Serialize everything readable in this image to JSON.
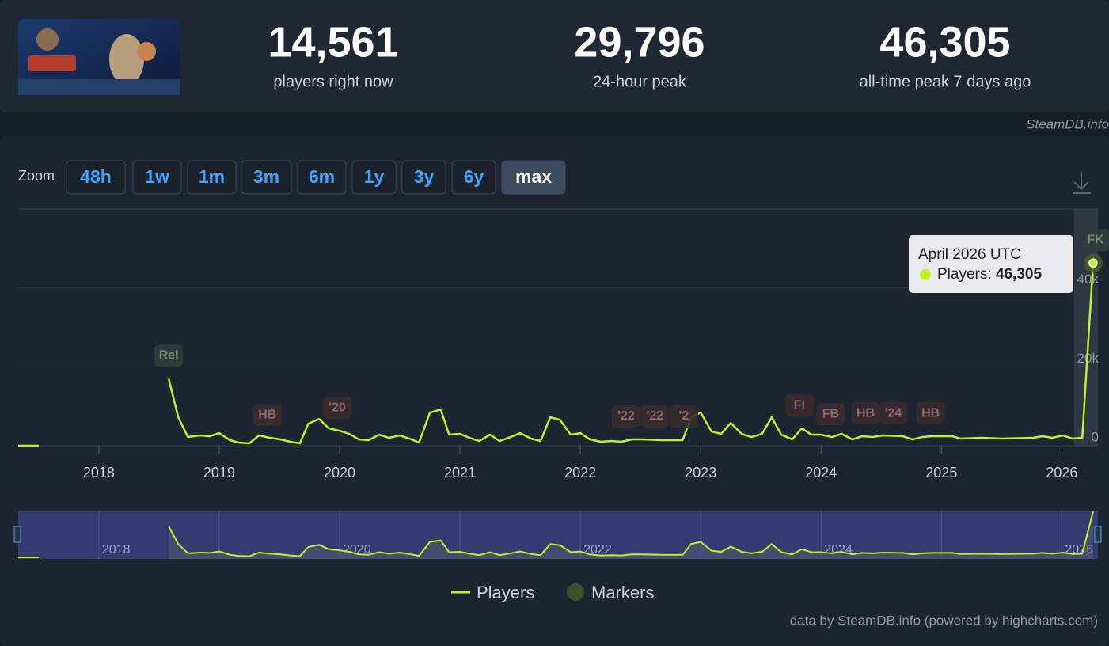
{
  "header": {
    "stats": [
      {
        "value": "14,561",
        "label": "players right now"
      },
      {
        "value": "29,796",
        "label": "24-hour peak"
      },
      {
        "value": "46,305",
        "label": "all-time peak 7 days ago"
      }
    ],
    "brand": "SteamDB.info"
  },
  "zoom": {
    "label": "Zoom",
    "buttons": [
      "48h",
      "1w",
      "1m",
      "3m",
      "6m",
      "1y",
      "3y",
      "6y",
      "max"
    ],
    "active": 8
  },
  "chart_data": {
    "type": "line",
    "x": [
      2017.33,
      2017.5,
      2018.0,
      2018.58,
      2018.66,
      2018.74,
      2018.84,
      2018.92,
      2019.0,
      2019.09,
      2019.16,
      2019.25,
      2019.33,
      2019.42,
      2019.51,
      2019.59,
      2019.67,
      2019.74,
      2019.83,
      2019.91,
      2020.0,
      2020.08,
      2020.16,
      2020.24,
      2020.33,
      2020.41,
      2020.5,
      2020.58,
      2020.66,
      2020.75,
      2020.84,
      2020.91,
      2021.0,
      2021.08,
      2021.16,
      2021.25,
      2021.33,
      2021.42,
      2021.5,
      2021.59,
      2021.67,
      2021.75,
      2021.83,
      2021.92,
      2022.0,
      2022.08,
      2022.17,
      2022.26,
      2022.34,
      2022.43,
      2022.51,
      2022.68,
      2022.85,
      2022.92,
      2023.0,
      2023.09,
      2023.17,
      2023.25,
      2023.34,
      2023.42,
      2023.51,
      2023.59,
      2023.67,
      2023.76,
      2023.84,
      2023.92,
      2024.0,
      2024.09,
      2024.17,
      2024.26,
      2024.34,
      2024.43,
      2024.51,
      2024.68,
      2024.76,
      2024.84,
      2024.92,
      2025.09,
      2025.16,
      2025.33,
      2025.5,
      2025.76,
      2025.84,
      2025.92,
      2026.01,
      2026.09,
      2026.17,
      2026.26
    ],
    "series": [
      {
        "name": "Players",
        "color": "#bef227",
        "values": [
          0,
          0,
          null,
          17000,
          7200,
          2200,
          2600,
          2400,
          3200,
          1400,
          800,
          600,
          2600,
          2000,
          1600,
          1000,
          600,
          5600,
          6800,
          4400,
          3800,
          3000,
          1600,
          1400,
          2800,
          2000,
          2600,
          1800,
          800,
          8400,
          9200,
          2800,
          3000,
          2000,
          1200,
          2800,
          1200,
          2200,
          3200,
          1800,
          1200,
          7200,
          6600,
          2800,
          3200,
          1600,
          1000,
          1200,
          1000,
          1600,
          1600,
          1400,
          1400,
          7200,
          8400,
          3600,
          3000,
          5800,
          3000,
          2200,
          3000,
          7200,
          2800,
          1600,
          4400,
          2800,
          2800,
          2200,
          3000,
          1600,
          2400,
          2200,
          2600,
          2400,
          1600,
          2200,
          2400,
          2400,
          1800,
          2000,
          1800,
          2000,
          2400,
          2000,
          2600,
          1800,
          2000,
          46305
        ]
      }
    ],
    "markers_name": "Markers",
    "markers": [
      {
        "label": "Rel",
        "x": 2018.58
      },
      {
        "label": "HB",
        "x": 2019.4
      },
      {
        "label": "'20",
        "x": 2019.98
      },
      {
        "label": "'22",
        "x": 2022.38
      },
      {
        "label": "'22",
        "x": 2022.62
      },
      {
        "label": "'2",
        "x": 2022.86
      },
      {
        "label": "FI",
        "x": 2023.82
      },
      {
        "label": "FB",
        "x": 2024.08
      },
      {
        "label": "HB",
        "x": 2024.37
      },
      {
        "label": "'24",
        "x": 2024.6
      },
      {
        "label": "HB",
        "x": 2024.91
      },
      {
        "label": "FK",
        "x": 2026.28
      }
    ],
    "xlim": [
      2017.33,
      2026.3
    ],
    "xticks": [
      2018,
      2019,
      2020,
      2021,
      2022,
      2023,
      2024,
      2025,
      2026
    ],
    "ylim": [
      0,
      60000
    ],
    "yticks": [
      {
        "value": 0,
        "label": "0"
      },
      {
        "value": 20000,
        "label": "20k"
      },
      {
        "value": 40000,
        "label": "40k"
      }
    ],
    "grid": true,
    "tooltip": {
      "date": "April 2026 UTC",
      "label": "Players:",
      "value": "46,305"
    },
    "credits": "data by SteamDB.info (powered by highcharts.com)"
  }
}
